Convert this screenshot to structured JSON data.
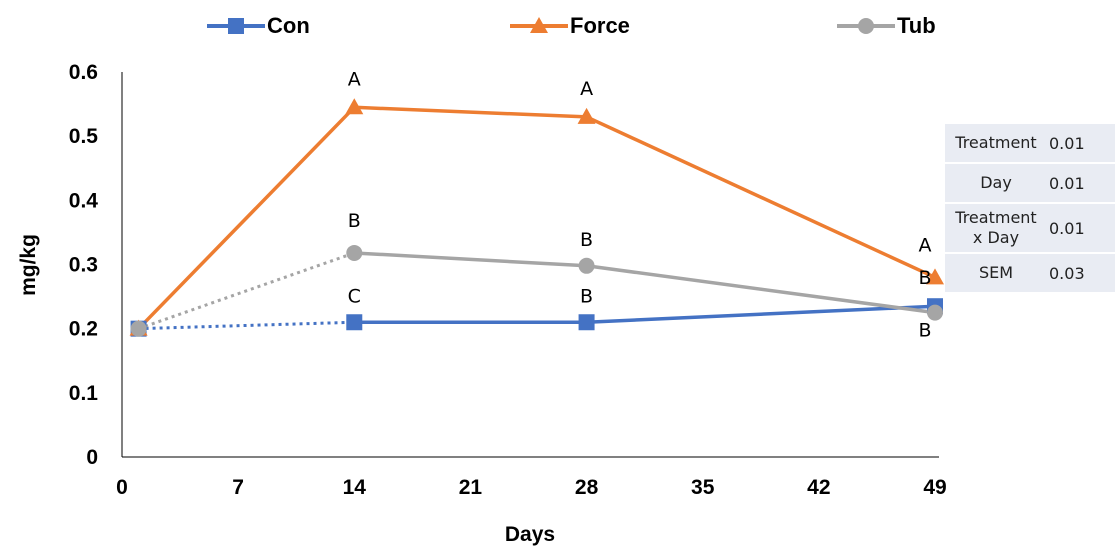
{
  "chart_data": {
    "type": "line",
    "xlabel": "Days",
    "ylabel": "mg/kg",
    "xlim": [
      0,
      49
    ],
    "ylim": [
      0,
      0.6
    ],
    "x_ticks": [
      "0",
      "7",
      "14",
      "21",
      "28",
      "35",
      "42",
      "49"
    ],
    "y_ticks": [
      "0",
      "0.1",
      "0.2",
      "0.3",
      "0.4",
      "0.5",
      "0.6"
    ],
    "grid": false,
    "legend_position": "top",
    "series": [
      {
        "name": "Con",
        "color": "#4472c4",
        "marker": "square",
        "x": [
          1,
          14,
          28,
          49
        ],
        "y": [
          0.2,
          0.21,
          0.21,
          0.235
        ],
        "first_segment_dotted": true,
        "labels": [
          "",
          "C",
          "B",
          "B"
        ]
      },
      {
        "name": "Force",
        "color": "#ed7d31",
        "marker": "triangle",
        "x": [
          1,
          14,
          28,
          49
        ],
        "y": [
          0.2,
          0.545,
          0.53,
          0.28
        ],
        "first_segment_dotted": false,
        "labels": [
          "",
          "A",
          "A",
          "A"
        ]
      },
      {
        "name": "Tub",
        "color": "#a5a5a5",
        "marker": "circle",
        "x": [
          1,
          14,
          28,
          49
        ],
        "y": [
          0.2,
          0.318,
          0.298,
          0.225
        ],
        "first_segment_dotted": true,
        "labels": [
          "",
          "B",
          "B",
          "B"
        ]
      }
    ]
  },
  "stats_table": [
    {
      "label": "Treatment",
      "value": "0.01"
    },
    {
      "label": "Day",
      "value": "0.01"
    },
    {
      "label": "Treatment x Day",
      "value": "0.01"
    },
    {
      "label": "SEM",
      "value": "0.03"
    }
  ]
}
